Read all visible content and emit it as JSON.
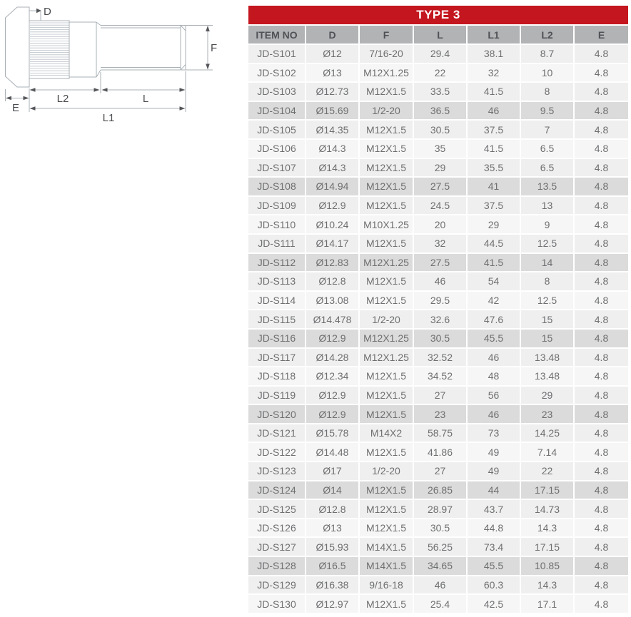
{
  "colors": {
    "accent_red": "#C4161E",
    "header_bg": "#B2B3B5",
    "header_text": "#4F5155",
    "cell_text": "#6E6F71",
    "row_a": "#EFEFEF",
    "row_b": "#F6F6F6",
    "row_dark": "#DBDBDB",
    "line": "#A9B0B6",
    "knurl": "#B9BFC5",
    "label": "#4A4B4E",
    "arrow": "#55565A"
  },
  "diagram": {
    "description": "wheel-stud side view with dimension callouts",
    "labels": {
      "d": "D",
      "f": "F",
      "l": "L",
      "l1": "L1",
      "l2": "L2",
      "e": "E"
    }
  },
  "table": {
    "title": "TYPE 3",
    "columns": [
      "ITEM NO",
      "D",
      "F",
      "L",
      "L1",
      "L2",
      "E"
    ],
    "rows": [
      [
        "JD-S101",
        "Ø12",
        "7/16-20",
        "29.4",
        "38.1",
        "8.7",
        "4.8"
      ],
      [
        "JD-S102",
        "Ø13",
        "M12X1.25",
        "22",
        "32",
        "10",
        "4.8"
      ],
      [
        "JD-S103",
        "Ø12.73",
        "M12X1.5",
        "33.5",
        "41.5",
        "8",
        "4.8"
      ],
      [
        "JD-S104",
        "Ø15.69",
        "1/2-20",
        "36.5",
        "46",
        "9.5",
        "4.8"
      ],
      [
        "JD-S105",
        "Ø14.35",
        "M12X1.5",
        "30.5",
        "37.5",
        "7",
        "4.8"
      ],
      [
        "JD-S106",
        "Ø14.3",
        "M12X1.5",
        "35",
        "41.5",
        "6.5",
        "4.8"
      ],
      [
        "JD-S107",
        "Ø14.3",
        "M12X1.5",
        "29",
        "35.5",
        "6.5",
        "4.8"
      ],
      [
        "JD-S108",
        "Ø14.94",
        "M12X1.5",
        "27.5",
        "41",
        "13.5",
        "4.8"
      ],
      [
        "JD-S109",
        "Ø12.9",
        "M12X1.5",
        "24.5",
        "37.5",
        "13",
        "4.8"
      ],
      [
        "JD-S110",
        "Ø10.24",
        "M10X1.25",
        "20",
        "29",
        "9",
        "4.8"
      ],
      [
        "JD-S111",
        "Ø14.17",
        "M12X1.5",
        "32",
        "44.5",
        "12.5",
        "4.8"
      ],
      [
        "JD-S112",
        "Ø12.83",
        "M12X1.25",
        "27.5",
        "41.5",
        "14",
        "4.8"
      ],
      [
        "JD-S113",
        "Ø12.8",
        "M12X1.5",
        "46",
        "54",
        "8",
        "4.8"
      ],
      [
        "JD-S114",
        "Ø13.08",
        "M12X1.5",
        "29.5",
        "42",
        "12.5",
        "4.8"
      ],
      [
        "JD-S115",
        "Ø14.478",
        "1/2-20",
        "32.6",
        "47.6",
        "15",
        "4.8"
      ],
      [
        "JD-S116",
        "Ø12.9",
        "M12X1.25",
        "30.5",
        "45.5",
        "15",
        "4.8"
      ],
      [
        "JD-S117",
        "Ø14.28",
        "M12X1.25",
        "32.52",
        "46",
        "13.48",
        "4.8"
      ],
      [
        "JD-S118",
        "Ø12.34",
        "M12X1.5",
        "34.52",
        "48",
        "13.48",
        "4.8"
      ],
      [
        "JD-S119",
        "Ø12.9",
        "M12X1.5",
        "27",
        "56",
        "29",
        "4.8"
      ],
      [
        "JD-S120",
        "Ø12.9",
        "M12X1.5",
        "23",
        "46",
        "23",
        "4.8"
      ],
      [
        "JD-S121",
        "Ø15.78",
        "M14X2",
        "58.75",
        "73",
        "14.25",
        "4.8"
      ],
      [
        "JD-S122",
        "Ø14.48",
        "M12X1.5",
        "41.86",
        "49",
        "7.14",
        "4.8"
      ],
      [
        "JD-S123",
        "Ø17",
        "1/2-20",
        "27",
        "49",
        "22",
        "4.8"
      ],
      [
        "JD-S124",
        "Ø14",
        "M12X1.5",
        "26.85",
        "44",
        "17.15",
        "4.8"
      ],
      [
        "JD-S125",
        "Ø12.8",
        "M12X1.5",
        "28.97",
        "43.7",
        "14.73",
        "4.8"
      ],
      [
        "JD-S126",
        "Ø13",
        "M12X1.5",
        "30.5",
        "44.8",
        "14.3",
        "4.8"
      ],
      [
        "JD-S127",
        "Ø15.93",
        "M14X1.5",
        "56.25",
        "73.4",
        "17.15",
        "4.8"
      ],
      [
        "JD-S128",
        "Ø16.5",
        "M14X1.5",
        "34.65",
        "45.5",
        "10.85",
        "4.8"
      ],
      [
        "JD-S129",
        "Ø16.38",
        "9/16-18",
        "46",
        "60.3",
        "14.3",
        "4.8"
      ],
      [
        "JD-S130",
        "Ø12.97",
        "M12X1.5",
        "25.4",
        "42.5",
        "17.1",
        "4.8"
      ]
    ]
  }
}
